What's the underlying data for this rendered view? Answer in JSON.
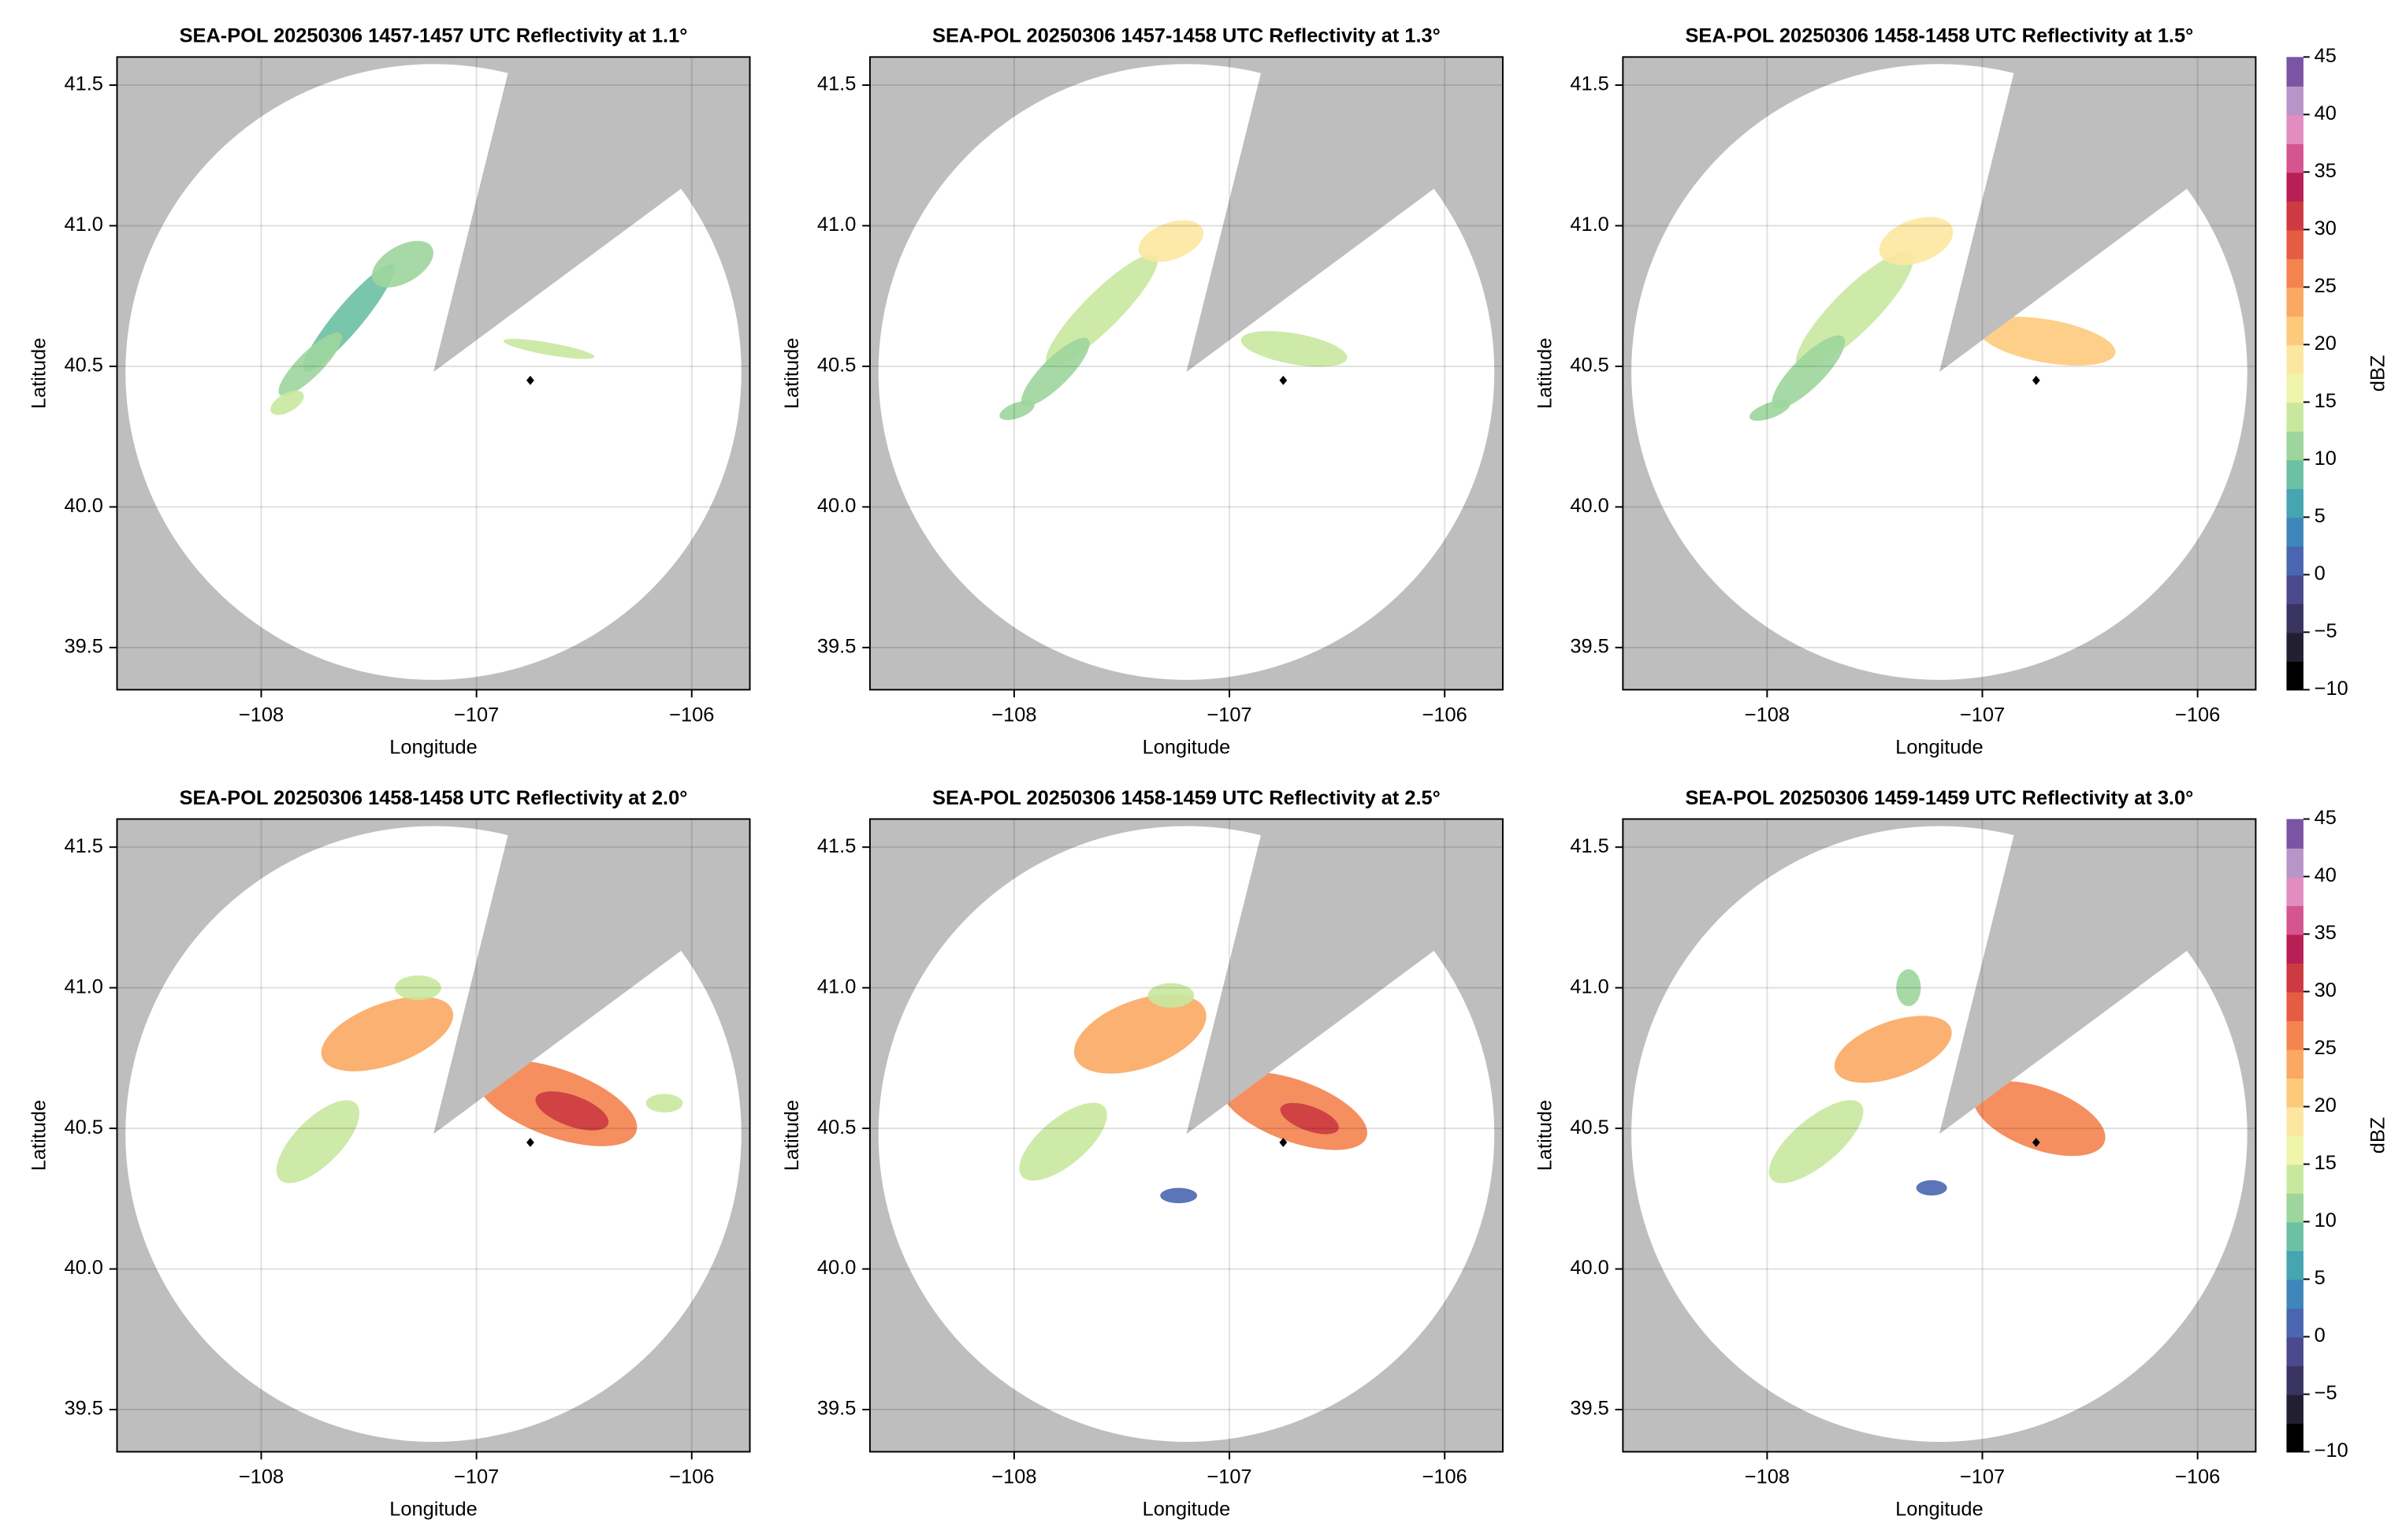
{
  "chart_data": [
    {
      "type": "radar-ppi",
      "title": "SEA-POL 20250306 1457-1457 UTC Reflectivity at 1.1°",
      "xlabel": "Longitude",
      "ylabel": "Latitude",
      "xlim": [
        -108.67,
        -105.73
      ],
      "ylim": [
        39.35,
        41.6
      ],
      "xticks": [
        {
          "value": -108,
          "label": "−108"
        },
        {
          "value": -107,
          "label": "−107"
        },
        {
          "value": -106,
          "label": "−106"
        }
      ],
      "yticks": [
        39.5,
        {
          "value": 40,
          "label": "40.0"
        },
        40.5,
        {
          "value": 41,
          "label": "41.0"
        },
        41.5
      ],
      "grid": true,
      "radar": {
        "x": -107.2,
        "y": 40.48
      },
      "marker": {
        "x": -106.75,
        "y": 40.45
      }
    },
    {
      "type": "radar-ppi",
      "title": "SEA-POL 20250306 1457-1458 UTC Reflectivity at 1.3°",
      "xlabel": "Longitude",
      "ylabel": "Latitude",
      "xlim": [
        -108.67,
        -105.73
      ],
      "ylim": [
        39.35,
        41.6
      ],
      "xticks": [
        {
          "value": -108,
          "label": "−108"
        },
        {
          "value": -107,
          "label": "−107"
        },
        {
          "value": -106,
          "label": "−106"
        }
      ],
      "yticks": [
        39.5,
        {
          "value": 40,
          "label": "40.0"
        },
        40.5,
        {
          "value": 41,
          "label": "41.0"
        },
        41.5
      ],
      "grid": true,
      "radar": {
        "x": -107.2,
        "y": 40.48
      },
      "marker": {
        "x": -106.75,
        "y": 40.45
      }
    },
    {
      "type": "radar-ppi",
      "title": "SEA-POL 20250306 1458-1458 UTC Reflectivity at 1.5°",
      "xlabel": "Longitude",
      "ylabel": "Latitude",
      "xlim": [
        -108.67,
        -105.73
      ],
      "ylim": [
        39.35,
        41.6
      ],
      "xticks": [
        {
          "value": -108,
          "label": "−108"
        },
        {
          "value": -107,
          "label": "−107"
        },
        {
          "value": -106,
          "label": "−106"
        }
      ],
      "yticks": [
        39.5,
        {
          "value": 40,
          "label": "40.0"
        },
        40.5,
        {
          "value": 41,
          "label": "41.0"
        },
        41.5
      ],
      "grid": true,
      "radar": {
        "x": -107.2,
        "y": 40.48
      },
      "marker": {
        "x": -106.75,
        "y": 40.45
      },
      "colorbar": {
        "label": "dBZ",
        "lim": [
          -10,
          45
        ],
        "ticks": [
          {
            "value": -10,
            "label": "−10"
          },
          {
            "value": -5,
            "label": "−5"
          },
          0,
          5,
          10,
          15,
          20,
          25,
          30,
          35,
          40,
          45
        ],
        "colormap": [
          "#000000",
          "#221f33",
          "#3a3560",
          "#4b4a8f",
          "#4a66b0",
          "#3f86bb",
          "#45a5b0",
          "#6cc0a3",
          "#9dd59c",
          "#c8e89e",
          "#f0f5ab",
          "#fde7a0",
          "#fdca7c",
          "#fba862",
          "#f4834f",
          "#e55c44",
          "#cd3a42",
          "#b71f55",
          "#d45590",
          "#e28dbf",
          "#b895c8",
          "#7b54a3"
        ]
      }
    },
    {
      "type": "radar-ppi",
      "title": "SEA-POL 20250306 1458-1458 UTC Reflectivity at 2.0°",
      "xlabel": "Longitude",
      "ylabel": "Latitude",
      "xlim": [
        -108.67,
        -105.73
      ],
      "ylim": [
        39.35,
        41.6
      ],
      "xticks": [
        {
          "value": -108,
          "label": "−108"
        },
        {
          "value": -107,
          "label": "−107"
        },
        {
          "value": -106,
          "label": "−106"
        }
      ],
      "yticks": [
        39.5,
        {
          "value": 40,
          "label": "40.0"
        },
        40.5,
        {
          "value": 41,
          "label": "41.0"
        },
        41.5
      ],
      "grid": true,
      "radar": {
        "x": -107.2,
        "y": 40.48
      },
      "marker": {
        "x": -106.75,
        "y": 40.45
      }
    },
    {
      "type": "radar-ppi",
      "title": "SEA-POL 20250306 1458-1459 UTC Reflectivity at 2.5°",
      "xlabel": "Longitude",
      "ylabel": "Latitude",
      "xlim": [
        -108.67,
        -105.73
      ],
      "ylim": [
        39.35,
        41.6
      ],
      "xticks": [
        {
          "value": -108,
          "label": "−108"
        },
        {
          "value": -107,
          "label": "−107"
        },
        {
          "value": -106,
          "label": "−106"
        }
      ],
      "yticks": [
        39.5,
        {
          "value": 40,
          "label": "40.0"
        },
        40.5,
        {
          "value": 41,
          "label": "41.0"
        },
        41.5
      ],
      "grid": true,
      "radar": {
        "x": -107.2,
        "y": 40.48
      },
      "marker": {
        "x": -106.75,
        "y": 40.45
      }
    },
    {
      "type": "radar-ppi",
      "title": "SEA-POL 20250306 1459-1459 UTC Reflectivity at 3.0°",
      "xlabel": "Longitude",
      "ylabel": "Latitude",
      "xlim": [
        -108.67,
        -105.73
      ],
      "ylim": [
        39.35,
        41.6
      ],
      "xticks": [
        {
          "value": -108,
          "label": "−108"
        },
        {
          "value": -107,
          "label": "−107"
        },
        {
          "value": -106,
          "label": "−106"
        }
      ],
      "yticks": [
        39.5,
        {
          "value": 40,
          "label": "40.0"
        },
        40.5,
        {
          "value": 41,
          "label": "41.0"
        },
        41.5
      ],
      "grid": true,
      "radar": {
        "x": -107.2,
        "y": 40.48
      },
      "marker": {
        "x": -106.75,
        "y": 40.45
      },
      "colorbar": {
        "label": "dBZ",
        "lim": [
          -10,
          45
        ],
        "ticks": [
          {
            "value": -10,
            "label": "−10"
          },
          {
            "value": -5,
            "label": "−5"
          },
          0,
          5,
          10,
          15,
          20,
          25,
          30,
          35,
          40,
          45
        ],
        "colormap": [
          "#000000",
          "#221f33",
          "#3a3560",
          "#4b4a8f",
          "#4a66b0",
          "#3f86bb",
          "#45a5b0",
          "#6cc0a3",
          "#9dd59c",
          "#c8e89e",
          "#f0f5ab",
          "#fde7a0",
          "#fdca7c",
          "#fba862",
          "#f4834f",
          "#e55c44",
          "#cd3a42",
          "#b71f55",
          "#d45590",
          "#e28dbf",
          "#b895c8",
          "#7b54a3"
        ]
      }
    }
  ]
}
